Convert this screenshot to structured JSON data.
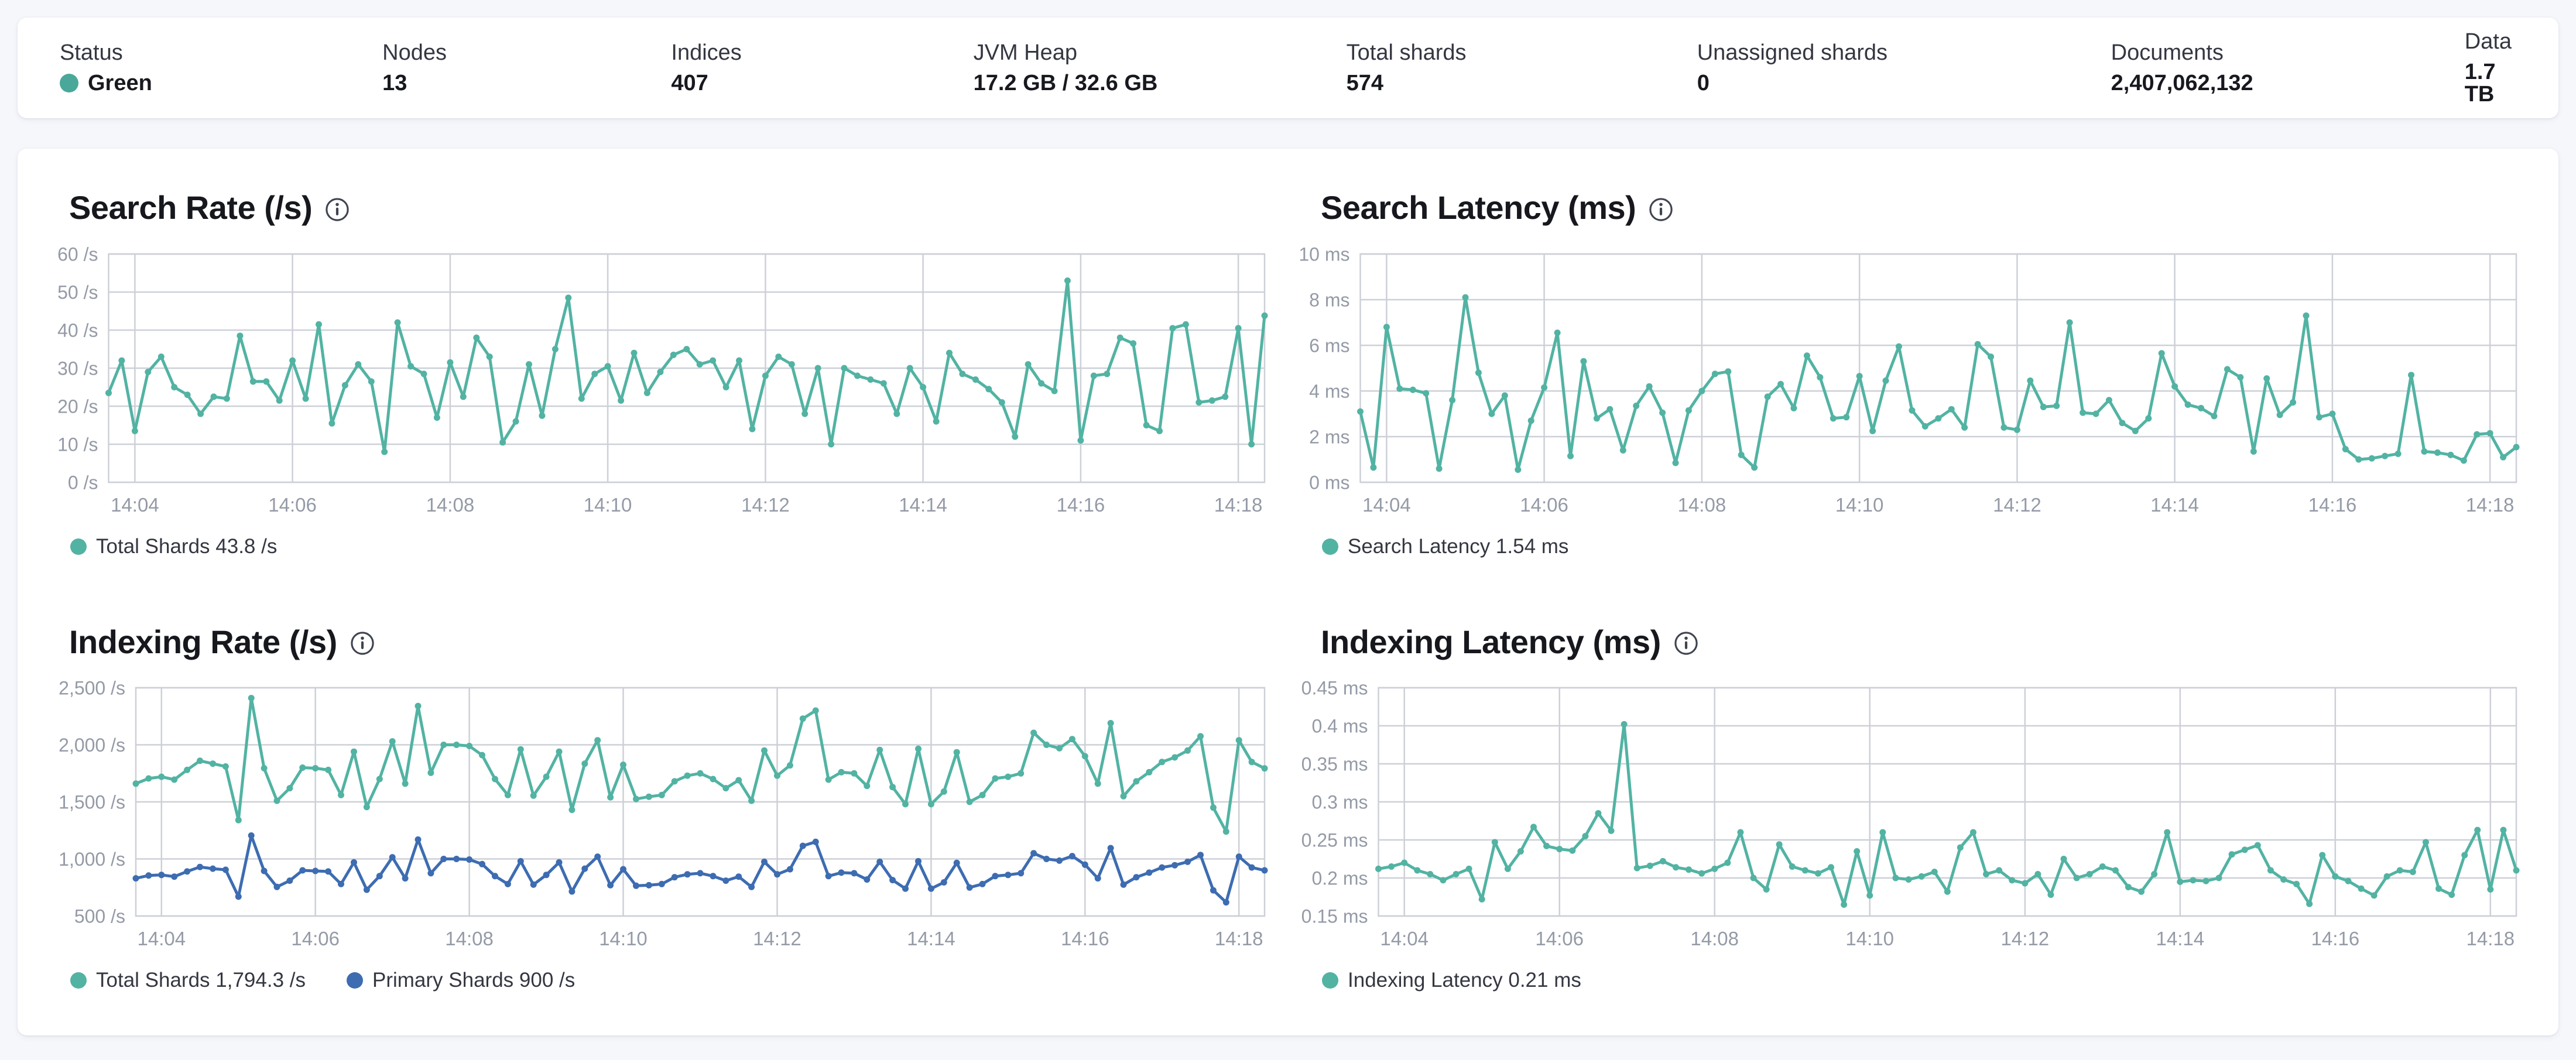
{
  "header": {
    "status_dot_color": "#4aa89b",
    "stats": [
      {
        "label": "Status",
        "value": "Green"
      },
      {
        "label": "Nodes",
        "value": "13"
      },
      {
        "label": "Indices",
        "value": "407"
      },
      {
        "label": "JVM Heap",
        "value": "17.2 GB / 32.6 GB"
      },
      {
        "label": "Total shards",
        "value": "574"
      },
      {
        "label": "Unassigned shards",
        "value": "0"
      },
      {
        "label": "Documents",
        "value": "2,407,062,132"
      },
      {
        "label": "Data",
        "value": "1.7 TB"
      }
    ]
  },
  "colors": {
    "teal": "#52b3a3",
    "blue": "#3d6cb1",
    "grid": "#cdd0d7",
    "tick_text": "#949aa6",
    "page_bg": "#f6f7fb"
  },
  "time_axis": {
    "start": "14:03:40",
    "interval_s": 10,
    "tick_indices": [
      2,
      14,
      26,
      38,
      50,
      62,
      74,
      86
    ],
    "tick_labels": [
      "14:04",
      "14:06",
      "14:08",
      "14:10",
      "14:12",
      "14:14",
      "14:16",
      "14:18"
    ]
  },
  "chart_data": [
    {
      "id": "search-rate",
      "type": "line",
      "title": "Search Rate (/s)",
      "ylim": [
        0,
        60
      ],
      "yticks": [
        {
          "v": 0,
          "label": "0 /s"
        },
        {
          "v": 10,
          "label": "10 /s"
        },
        {
          "v": 20,
          "label": "20 /s"
        },
        {
          "v": 30,
          "label": "30 /s"
        },
        {
          "v": 40,
          "label": "40 /s"
        },
        {
          "v": 50,
          "label": "50 /s"
        },
        {
          "v": 60,
          "label": "60 /s"
        }
      ],
      "series": [
        {
          "name": "Total Shards",
          "legend": "Total Shards 43.8 /s",
          "color": "teal",
          "values": [
            23.5,
            32,
            13.5,
            29,
            33,
            25,
            23,
            18,
            22.5,
            22,
            38.5,
            26.5,
            26.5,
            21.5,
            32,
            22,
            41.5,
            15.5,
            25.5,
            31,
            26.5,
            8,
            42,
            30.5,
            28.5,
            17,
            31.5,
            22.5,
            38,
            33,
            10.5,
            16,
            31,
            17.5,
            35,
            48.5,
            22,
            28.5,
            30.5,
            21.5,
            34,
            23.5,
            29,
            33.5,
            35,
            31,
            32,
            25,
            32,
            14,
            28,
            33,
            31,
            18,
            30,
            10,
            30,
            28,
            27,
            26,
            18,
            30,
            25,
            16,
            34,
            28.5,
            27,
            24.5,
            21,
            12,
            31,
            26,
            24,
            53,
            11,
            28,
            28.5,
            38,
            36.5,
            15,
            13.5,
            40.5,
            41.5,
            21,
            21.5,
            22.5,
            40.5,
            10,
            43.8
          ]
        }
      ]
    },
    {
      "id": "search-latency",
      "type": "line",
      "title": "Search Latency (ms)",
      "ylim": [
        0,
        10
      ],
      "yticks": [
        {
          "v": 0,
          "label": "0 ms"
        },
        {
          "v": 2,
          "label": "2 ms"
        },
        {
          "v": 4,
          "label": "4 ms"
        },
        {
          "v": 6,
          "label": "6 ms"
        },
        {
          "v": 8,
          "label": "8 ms"
        },
        {
          "v": 10,
          "label": "10 ms"
        }
      ],
      "series": [
        {
          "name": "Search Latency",
          "legend": "Search Latency 1.54 ms",
          "color": "teal",
          "values": [
            3.1,
            0.65,
            6.8,
            4.1,
            4.05,
            3.9,
            0.6,
            3.6,
            8.1,
            4.8,
            3.0,
            3.8,
            0.55,
            2.7,
            4.15,
            6.55,
            1.15,
            5.3,
            2.8,
            3.2,
            1.4,
            3.35,
            4.2,
            3.05,
            0.85,
            3.15,
            4.0,
            4.75,
            4.85,
            1.2,
            0.65,
            3.75,
            4.3,
            3.25,
            5.55,
            4.6,
            2.8,
            2.85,
            4.65,
            2.25,
            4.45,
            5.95,
            3.15,
            2.45,
            2.8,
            3.2,
            2.4,
            6.05,
            5.5,
            2.4,
            2.3,
            4.45,
            3.3,
            3.35,
            7.0,
            3.05,
            3.0,
            3.6,
            2.6,
            2.25,
            2.8,
            5.65,
            4.2,
            3.4,
            3.25,
            2.9,
            4.95,
            4.6,
            1.35,
            4.55,
            2.95,
            3.5,
            7.3,
            2.85,
            3.0,
            1.45,
            1.0,
            1.05,
            1.15,
            1.25,
            4.7,
            1.35,
            1.3,
            1.2,
            0.95,
            2.1,
            2.15,
            1.1,
            1.54
          ]
        }
      ]
    },
    {
      "id": "indexing-rate",
      "type": "line",
      "title": "Indexing Rate (/s)",
      "ylim": [
        500,
        2500
      ],
      "yticks": [
        {
          "v": 500,
          "label": "500 /s"
        },
        {
          "v": 1000,
          "label": "1,000 /s"
        },
        {
          "v": 1500,
          "label": "1,500 /s"
        },
        {
          "v": 2000,
          "label": "2,000 /s"
        },
        {
          "v": 2500,
          "label": "2,500 /s"
        }
      ],
      "series": [
        {
          "name": "Total Shards",
          "legend": "Total Shards 1,794.3 /s",
          "color": "teal",
          "values": [
            1660,
            1705,
            1720,
            1695,
            1780,
            1860,
            1835,
            1810,
            1340,
            2410,
            1795,
            1510,
            1620,
            1800,
            1795,
            1780,
            1560,
            1940,
            1455,
            1700,
            2030,
            1660,
            2340,
            1755,
            2000,
            2000,
            1990,
            1910,
            1700,
            1560,
            1960,
            1555,
            1720,
            1940,
            1430,
            1835,
            2040,
            1540,
            1825,
            1525,
            1545,
            1560,
            1680,
            1730,
            1750,
            1700,
            1620,
            1690,
            1510,
            1950,
            1730,
            1820,
            2230,
            2300,
            1695,
            1760,
            1750,
            1640,
            1955,
            1630,
            1480,
            1965,
            1480,
            1590,
            1935,
            1500,
            1560,
            1705,
            1720,
            1750,
            2105,
            2000,
            1970,
            2050,
            1900,
            1660,
            2190,
            1550,
            1680,
            1760,
            1850,
            1890,
            1950,
            2075,
            1450,
            1240,
            2040,
            1850,
            1794
          ]
        },
        {
          "name": "Primary Shards",
          "legend": "Primary Shards 900 /s",
          "color": "blue",
          "values": [
            830,
            855,
            860,
            845,
            890,
            930,
            915,
            905,
            670,
            1205,
            895,
            755,
            810,
            900,
            895,
            890,
            780,
            970,
            730,
            850,
            1015,
            830,
            1170,
            875,
            1000,
            1000,
            995,
            955,
            850,
            780,
            980,
            775,
            860,
            970,
            715,
            915,
            1020,
            770,
            910,
            765,
            770,
            780,
            840,
            865,
            875,
            850,
            810,
            845,
            755,
            975,
            865,
            910,
            1115,
            1150,
            850,
            880,
            875,
            820,
            975,
            815,
            740,
            980,
            740,
            795,
            965,
            750,
            780,
            850,
            860,
            875,
            1050,
            1000,
            985,
            1025,
            950,
            830,
            1095,
            775,
            840,
            880,
            925,
            945,
            975,
            1035,
            725,
            620,
            1020,
            925,
            900
          ]
        }
      ]
    },
    {
      "id": "indexing-latency",
      "type": "line",
      "title": "Indexing Latency (ms)",
      "ylim": [
        0.15,
        0.45
      ],
      "yticks": [
        {
          "v": 0.15,
          "label": "0.15 ms"
        },
        {
          "v": 0.2,
          "label": "0.2 ms"
        },
        {
          "v": 0.25,
          "label": "0.25 ms"
        },
        {
          "v": 0.3,
          "label": "0.3 ms"
        },
        {
          "v": 0.35,
          "label": "0.35 ms"
        },
        {
          "v": 0.4,
          "label": "0.4 ms"
        },
        {
          "v": 0.45,
          "label": "0.45 ms"
        }
      ],
      "series": [
        {
          "name": "Indexing Latency",
          "legend": "Indexing Latency 0.21 ms",
          "color": "teal",
          "values": [
            0.212,
            0.215,
            0.22,
            0.21,
            0.205,
            0.197,
            0.205,
            0.212,
            0.172,
            0.247,
            0.212,
            0.235,
            0.267,
            0.242,
            0.238,
            0.236,
            0.255,
            0.285,
            0.262,
            0.402,
            0.213,
            0.216,
            0.222,
            0.214,
            0.211,
            0.206,
            0.212,
            0.22,
            0.26,
            0.2,
            0.185,
            0.244,
            0.215,
            0.21,
            0.206,
            0.214,
            0.165,
            0.235,
            0.177,
            0.26,
            0.2,
            0.198,
            0.202,
            0.208,
            0.182,
            0.24,
            0.26,
            0.205,
            0.21,
            0.197,
            0.193,
            0.205,
            0.178,
            0.225,
            0.2,
            0.205,
            0.215,
            0.21,
            0.188,
            0.182,
            0.205,
            0.26,
            0.195,
            0.197,
            0.196,
            0.2,
            0.231,
            0.237,
            0.243,
            0.21,
            0.198,
            0.192,
            0.166,
            0.23,
            0.202,
            0.196,
            0.186,
            0.177,
            0.202,
            0.21,
            0.208,
            0.247,
            0.186,
            0.178,
            0.23,
            0.263,
            0.185,
            0.263,
            0.21
          ]
        }
      ]
    }
  ]
}
